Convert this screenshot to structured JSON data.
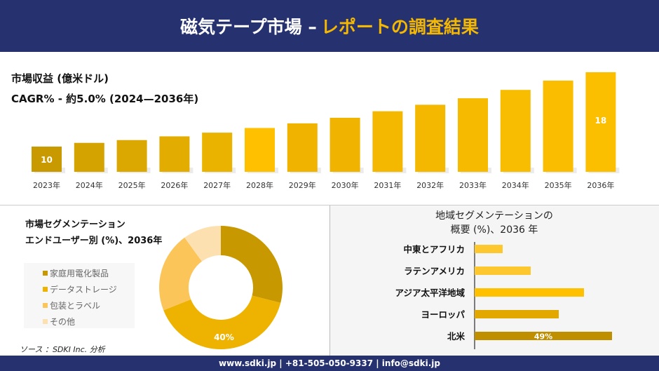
{
  "header": {
    "title_main": "磁気テープ市場 –",
    "title_accent": "レポートの調査結果"
  },
  "chart_data": [
    {
      "type": "bar",
      "title": "市場収益 (億米ドル)",
      "subtitle": "CAGR% - 約5.0% (2024—2036年)",
      "categories": [
        "2023年",
        "2024年",
        "2025年",
        "2026年",
        "2027年",
        "2028年",
        "2029年",
        "2030年",
        "2031年",
        "2032年",
        "2033年",
        "2034年",
        "2035年",
        "2036年"
      ],
      "values": [
        10,
        10.4,
        10.7,
        11.1,
        11.5,
        12.0,
        12.5,
        13.1,
        13.8,
        14.5,
        15.2,
        16.1,
        17.1,
        18
      ],
      "data_labels": {
        "0": "10",
        "13": "18"
      },
      "colors": [
        "#c99a00",
        "#d4a300",
        "#daa800",
        "#e2ad00",
        "#eab300",
        "#ffc000",
        "#f0b400",
        "#f0b400",
        "#f4b800",
        "#f4b800",
        "#f6ba00",
        "#f8bc00",
        "#fabd00",
        "#fcbf00"
      ],
      "grid": false
    },
    {
      "type": "pie",
      "title": "市場セグメンテーション",
      "subtitle": "エンドユーザー別 (%)、2036年",
      "categories": [
        "家庭用電化製品",
        "データストレージ",
        "包装とラベル",
        "その他"
      ],
      "values": [
        29,
        40,
        21,
        10
      ],
      "data_labels": {
        "1": "40%"
      },
      "colors": [
        "#c89800",
        "#eeb300",
        "#fbc55a",
        "#fde0b0"
      ],
      "legend": "left"
    },
    {
      "type": "bar",
      "orientation": "horizontal",
      "title": "地域セグメンテーションの",
      "subtitle": "概要 (%)、2036 年",
      "categories": [
        "中東とアフリカ",
        "ラテンアメリカ",
        "アジア太平洋地域",
        "ヨーロッパ",
        "北米"
      ],
      "values": [
        10,
        20,
        39,
        30,
        49
      ],
      "data_labels": {
        "4": "49%"
      },
      "colors": [
        "#fdc82f",
        "#fdc82f",
        "#ffc000",
        "#e2a800",
        "#bf8f00"
      ]
    }
  ],
  "source": "ソース ：SDKI Inc. 分析",
  "footer": "www.sdki.jp | +81-505-050-9337 | info@sdki.jp"
}
